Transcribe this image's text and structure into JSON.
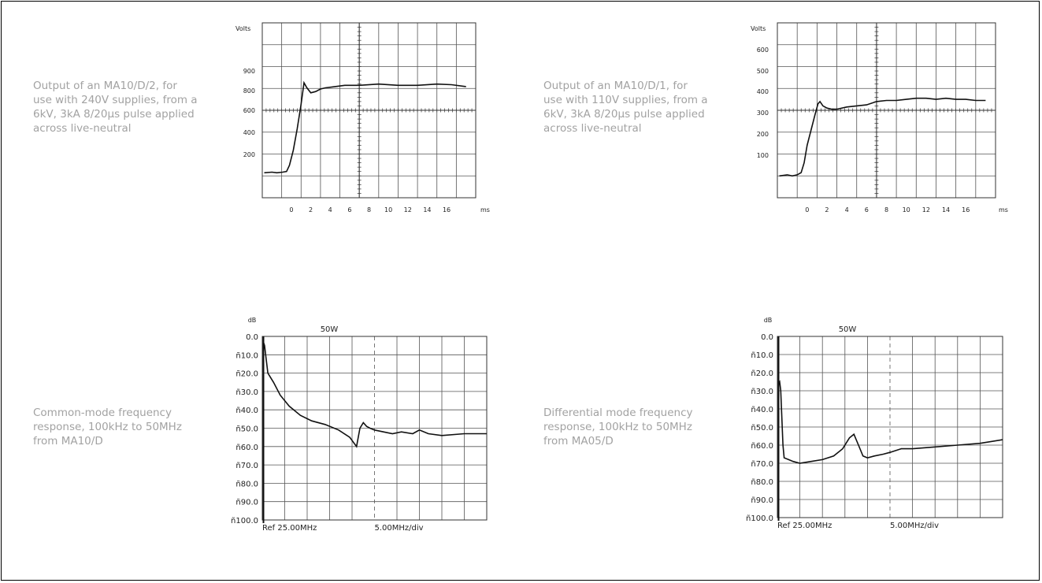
{
  "captions": [
    {
      "lines": [
        "Output of an MA10/D/2, for",
        "use with 240V supplies, from a",
        "6kV, 3kA 8/20µs pulse applied",
        "across live-neutral"
      ]
    },
    {
      "lines": [
        "Output of an MA10/D/1, for",
        "use with 110V supplies, from a",
        "6kV, 3kA 8/20µs pulse applied",
        "across live-neutral"
      ]
    },
    {
      "lines": [
        "Common-mode frequency",
        "response, 100kHz to 50MHz",
        "from MA10/D"
      ]
    },
    {
      "lines": [
        "Differential mode frequency",
        "response, 100kHz to 50MHz",
        "from MA05/D"
      ]
    }
  ],
  "chart_data": [
    {
      "type": "line",
      "ylabel": "Volts",
      "xunit": "ms",
      "xticks": [
        0,
        2,
        4,
        6,
        8,
        10,
        12,
        14,
        16
      ],
      "yticks": [
        200,
        400,
        600,
        800,
        900
      ],
      "xlim": [
        -3,
        19
      ],
      "ylim": [
        -200,
        1200
      ],
      "series": [
        {
          "x": [
            -2.8,
            -2.0,
            -1.5,
            -0.9,
            -0.5,
            -0.2,
            0.2,
            0.6,
            1.0,
            1.3,
            1.6,
            2.0,
            2.5,
            3.0,
            3.5,
            4.5,
            5.5,
            7,
            9,
            11,
            13,
            15,
            16.5,
            18
          ],
          "y": [
            0,
            5,
            0,
            5,
            10,
            60,
            180,
            350,
            550,
            720,
            680,
            640,
            650,
            670,
            680,
            690,
            700,
            700,
            710,
            700,
            700,
            710,
            705,
            690
          ]
        }
      ]
    },
    {
      "type": "line",
      "ylabel": "Volts",
      "xunit": "ms",
      "xticks": [
        0,
        2,
        4,
        6,
        8,
        10,
        12,
        14,
        16
      ],
      "yticks": [
        100,
        200,
        300,
        400,
        500,
        600
      ],
      "xlim": [
        -3,
        19
      ],
      "ylim": [
        -100,
        700
      ],
      "series": [
        {
          "x": [
            -2.8,
            -2.0,
            -1.5,
            -1.0,
            -0.6,
            -0.3,
            0.0,
            0.4,
            0.8,
            1.1,
            1.3,
            1.6,
            2.0,
            2.5,
            3.0,
            4.0,
            5.0,
            6.0,
            7.0,
            8.0,
            9.0,
            10.0,
            11.0,
            12.0,
            13.0,
            14.0,
            15.0,
            16.0,
            17.0,
            18.0
          ],
          "y": [
            0,
            5,
            0,
            5,
            15,
            60,
            140,
            210,
            280,
            330,
            340,
            320,
            310,
            305,
            305,
            315,
            320,
            325,
            340,
            345,
            345,
            350,
            355,
            355,
            350,
            355,
            350,
            350,
            345,
            345
          ]
        }
      ]
    },
    {
      "type": "line",
      "ylabel": "dB",
      "title": "50W",
      "xlabel_left": "Ref 25.00MHz",
      "xlabel_right": "5.00MHz/div",
      "yticks": [
        "0.0",
        "ñ10.0",
        "ñ20.0",
        "ñ30.0",
        "ñ40.0",
        "ñ50.0",
        "ñ60.0",
        "ñ70.0",
        "ñ80.0",
        "ñ90.0",
        "ñ100.0"
      ],
      "xlim": [
        0,
        10
      ],
      "ylim": [
        -100,
        0
      ],
      "series": [
        {
          "x": [
            0.05,
            0.1,
            0.15,
            0.25,
            0.35,
            0.5,
            0.8,
            1.2,
            1.7,
            2.2,
            2.8,
            3.4,
            3.9,
            4.2,
            4.35,
            4.5,
            4.65,
            4.8,
            5.0,
            5.4,
            5.8,
            6.2,
            6.7,
            7.0,
            7.4,
            8.0,
            9.0,
            10.0
          ],
          "y": [
            -3,
            -5,
            -10,
            -20,
            -22,
            -25,
            -32,
            -38,
            -43,
            -46,
            -48,
            -51,
            -55,
            -60,
            -50,
            -47,
            -49,
            -50,
            -51,
            -52,
            -53,
            -52,
            -53,
            -51,
            -53,
            -54,
            -53,
            -53
          ]
        }
      ]
    },
    {
      "type": "line",
      "ylabel": "dB",
      "title": "50W",
      "xlabel_left": "Ref 25.00MHz",
      "xlabel_right": "5.00MHz/div",
      "yticks": [
        "0.0",
        "ñ10.0",
        "ñ20.0",
        "ñ30.0",
        "ñ40.0",
        "ñ50.0",
        "ñ60.0",
        "ñ70.0",
        "ñ80.0",
        "ñ90.0",
        "ñ100.0"
      ],
      "xlim": [
        0,
        10
      ],
      "ylim": [
        -100,
        0
      ],
      "series": [
        {
          "x": [
            0.05,
            0.1,
            0.15,
            0.25,
            0.3,
            0.5,
            0.7,
            1.0,
            1.5,
            2.0,
            2.5,
            2.9,
            3.2,
            3.4,
            3.6,
            3.8,
            4.0,
            4.3,
            4.7,
            5.0,
            5.5,
            6.0,
            7.0,
            8.0,
            9.0,
            10.0
          ],
          "y": [
            -26,
            -25,
            -30,
            -60,
            -67,
            -68,
            -69,
            -70,
            -69,
            -68,
            -66,
            -62,
            -56,
            -54,
            -60,
            -66,
            -67,
            -66,
            -65,
            -64,
            -62,
            -62,
            -61,
            -60,
            -59,
            -57
          ]
        }
      ]
    }
  ]
}
